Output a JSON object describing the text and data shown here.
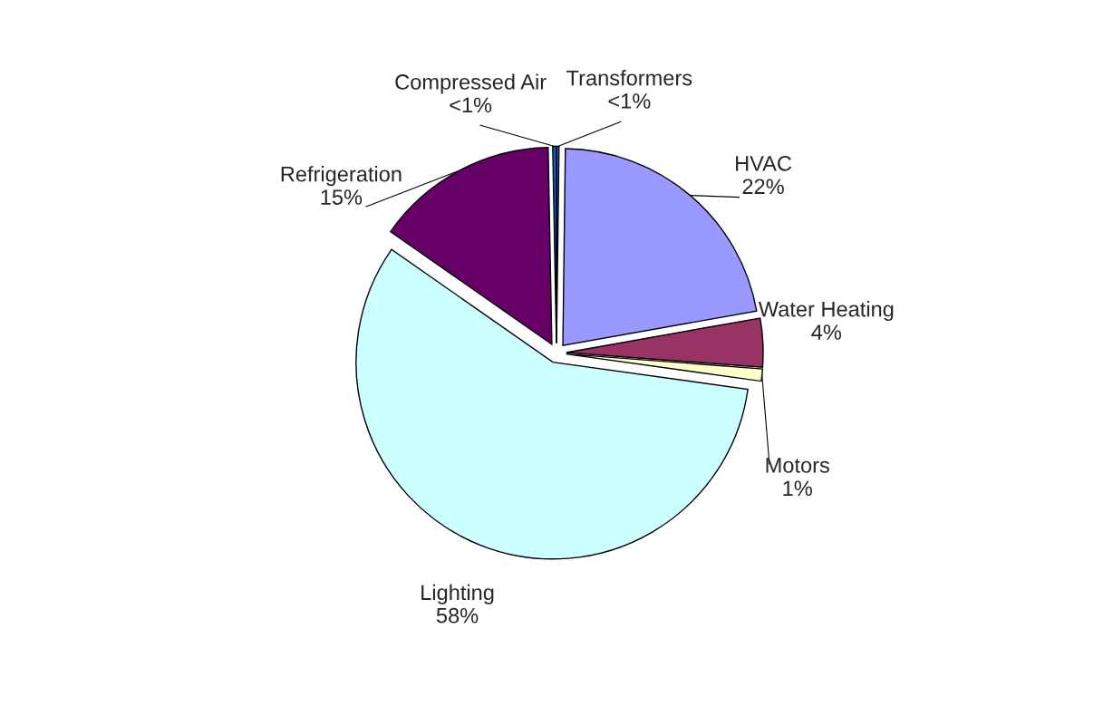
{
  "chart_data": {
    "type": "pie",
    "categories": [
      "Transformers",
      "HVAC",
      "Water Heating",
      "Motors",
      "Lighting",
      "Refrigeration",
      "Compressed Air"
    ],
    "values": [
      0.2,
      22,
      4,
      1,
      57.5,
      15,
      0.3
    ],
    "value_labels": [
      "<1%",
      "22%",
      "4%",
      "1%",
      "58%",
      "15%",
      "<1%"
    ],
    "colors": [
      "#3366cc",
      "#9999ff",
      "#993366",
      "#ffffcc",
      "#ccffff",
      "#660066",
      "#0066cc"
    ],
    "legend": false
  }
}
